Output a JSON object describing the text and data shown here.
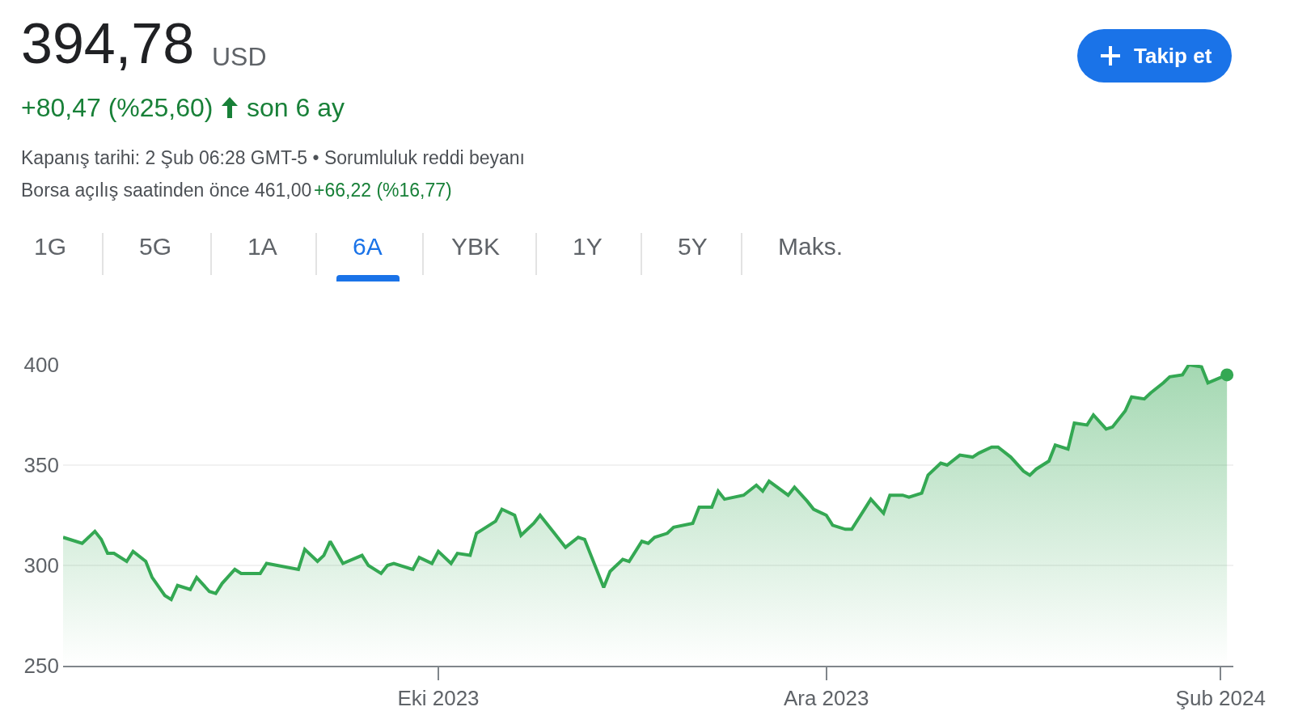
{
  "chart_data": {
    "type": "area",
    "title": "394,78",
    "subtitle": "+80,47 (%25,60)",
    "annotations": [
      "USD",
      "son 6 ay",
      "Kapanış tarihi: 2 Şub 06:28 GMT-5 • Sorumluluk reddi beyanı",
      "Borsa açılış saatinden önce 461,00",
      "+66,22 (%16,77)",
      "Takip et",
      "1G",
      "5G",
      "1A",
      "6A",
      "YBK",
      "1Y",
      "5Y",
      "Maks."
    ],
    "x": [
      "2023-08-03",
      "2023-08-04",
      "2023-08-06",
      "2023-08-08",
      "2023-08-09",
      "2023-08-10",
      "2023-08-11",
      "2023-08-13",
      "2023-08-14",
      "2023-08-16",
      "2023-08-17",
      "2023-08-19",
      "2023-08-20",
      "2023-08-21",
      "2023-08-23",
      "2023-08-24",
      "2023-08-26",
      "2023-08-27",
      "2023-08-28",
      "2023-08-30",
      "2023-08-31",
      "2023-09-03",
      "2023-09-04",
      "2023-09-09",
      "2023-09-10",
      "2023-09-12",
      "2023-09-13",
      "2023-09-14",
      "2023-09-16",
      "2023-09-19",
      "2023-09-20",
      "2023-09-22",
      "2023-09-23",
      "2023-09-24",
      "2023-09-27",
      "2023-09-28",
      "2023-09-30",
      "2023-10-01",
      "2023-10-03",
      "2023-10-04",
      "2023-10-06",
      "2023-10-07",
      "2023-10-08",
      "2023-10-10",
      "2023-10-11",
      "2023-10-13",
      "2023-10-14",
      "2023-10-16",
      "2023-10-17",
      "2023-10-19",
      "2023-10-21",
      "2023-10-23",
      "2023-10-24",
      "2023-10-27",
      "2023-10-28",
      "2023-10-30",
      "2023-10-31",
      "2023-11-02",
      "2023-11-03",
      "2023-11-04",
      "2023-11-06",
      "2023-11-07",
      "2023-11-10",
      "2023-11-11",
      "2023-11-13",
      "2023-11-14",
      "2023-11-15",
      "2023-11-18",
      "2023-11-20",
      "2023-11-21",
      "2023-11-22",
      "2023-11-25",
      "2023-11-26",
      "2023-11-28",
      "2023-11-29",
      "2023-12-01",
      "2023-12-02",
      "2023-12-04",
      "2023-12-05",
      "2023-12-07",
      "2023-12-08",
      "2023-12-10",
      "2023-12-11",
      "2023-12-13",
      "2023-12-14",
      "2023-12-16",
      "2023-12-17",
      "2023-12-19",
      "2023-12-20",
      "2023-12-22",
      "2023-12-24",
      "2023-12-25",
      "2023-12-27",
      "2023-12-28",
      "2023-12-30",
      "2024-01-01",
      "2024-01-02",
      "2024-01-03",
      "2024-01-05",
      "2024-01-06",
      "2024-01-08",
      "2024-01-09",
      "2024-01-11",
      "2024-01-12",
      "2024-01-14",
      "2024-01-15",
      "2024-01-17",
      "2024-01-18",
      "2024-01-20",
      "2024-01-21",
      "2024-01-23",
      "2024-01-24",
      "2024-01-26",
      "2024-01-27",
      "2024-01-29",
      "2024-01-30",
      "2024-02-02"
    ],
    "series": [
      {
        "color": "#34a853",
        "values": [
          314,
          313,
          311,
          317,
          313,
          306,
          306,
          302,
          307,
          302,
          294,
          285,
          283,
          290,
          288,
          294,
          287,
          286,
          291,
          298,
          296,
          296,
          301,
          298,
          308,
          302,
          305,
          312,
          301,
          305,
          300,
          296,
          300,
          301,
          298,
          304,
          301,
          307,
          301,
          306,
          305,
          316,
          318,
          322,
          328,
          325,
          315,
          321,
          325,
          317,
          309,
          314,
          313,
          289,
          297,
          303,
          302,
          312,
          311,
          314,
          316,
          319,
          321,
          329,
          329,
          337,
          333,
          335,
          340,
          337,
          342,
          335,
          339,
          332,
          328,
          325,
          320,
          318,
          318,
          328,
          333,
          326,
          335,
          335,
          334,
          336,
          345,
          351,
          350,
          355,
          354,
          356,
          359,
          359,
          354,
          347,
          345,
          348,
          352,
          360,
          358,
          371,
          370,
          375,
          368,
          369,
          377,
          384,
          383,
          386,
          391,
          394,
          395,
          400,
          399,
          391,
          395
        ]
      },
      {
        "type": "scatter",
        "color": "#34a853",
        "x": [
          "2024-02-02"
        ],
        "values": [
          395
        ]
      }
    ],
    "xlim": [
      "2023-08-03",
      "2024-02-03"
    ],
    "xticks": [
      {
        "value": "2023-10-01",
        "label": "Eki 2023"
      },
      {
        "value": "2023-12-01",
        "label": "Ara 2023"
      },
      {
        "value": "2024-02-01",
        "label": "Şub 2024"
      }
    ],
    "ylim": [
      250,
      400
    ],
    "yticks": [
      250,
      300,
      350,
      400
    ],
    "grid": "y"
  }
}
